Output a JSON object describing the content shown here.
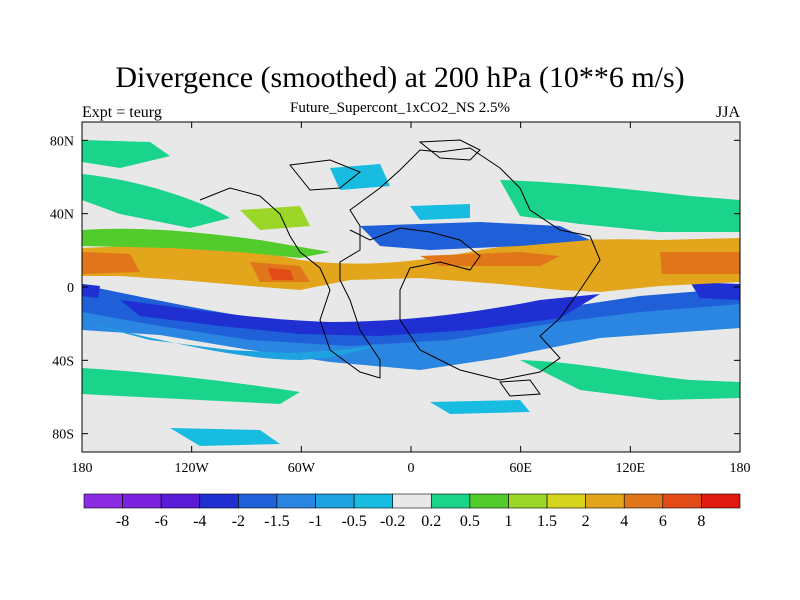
{
  "header": {
    "title": "Divergence (smoothed) at 200 hPa (10**6 m/s)",
    "subtitle": "Future_Supercont_1xCO2_NS 2.5%",
    "left_label": "Expt = teurg",
    "right_label": "JJA"
  },
  "map_data": {
    "type": "filled-contour",
    "projection": "cylindrical-equidistant",
    "lon_range": [
      -180,
      180
    ],
    "lat_range": [
      -90,
      90
    ],
    "x_ticks": [
      {
        "lon": -180,
        "label": "180"
      },
      {
        "lon": -120,
        "label": "120W"
      },
      {
        "lon": -60,
        "label": "60W"
      },
      {
        "lon": 0,
        "label": "0"
      },
      {
        "lon": 60,
        "label": "60E"
      },
      {
        "lon": 120,
        "label": "120E"
      },
      {
        "lon": 180,
        "label": "180"
      }
    ],
    "y_ticks": [
      {
        "lat": 80,
        "label": "80N"
      },
      {
        "lat": 40,
        "label": "40N"
      },
      {
        "lat": 0,
        "label": "0"
      },
      {
        "lat": -40,
        "label": "40S"
      },
      {
        "lat": -80,
        "label": "80S"
      }
    ]
  },
  "colorbar": {
    "levels": [
      "-8",
      "-6",
      "-4",
      "-2",
      "-1.5",
      "-1",
      "-0.5",
      "-0.2",
      "0.2",
      "0.5",
      "1",
      "1.5",
      "2",
      "4",
      "6",
      "8"
    ],
    "colors": [
      "#8b2be2",
      "#7a22de",
      "#5a1cd6",
      "#1f2fd1",
      "#1f5fd8",
      "#2a86e0",
      "#1ea2e0",
      "#17bce0",
      "#e8e8e8",
      "#19d48a",
      "#52cc2c",
      "#9cd629",
      "#d7d41e",
      "#e2a51b",
      "#e0751a",
      "#e24b18",
      "#e01a10"
    ]
  }
}
